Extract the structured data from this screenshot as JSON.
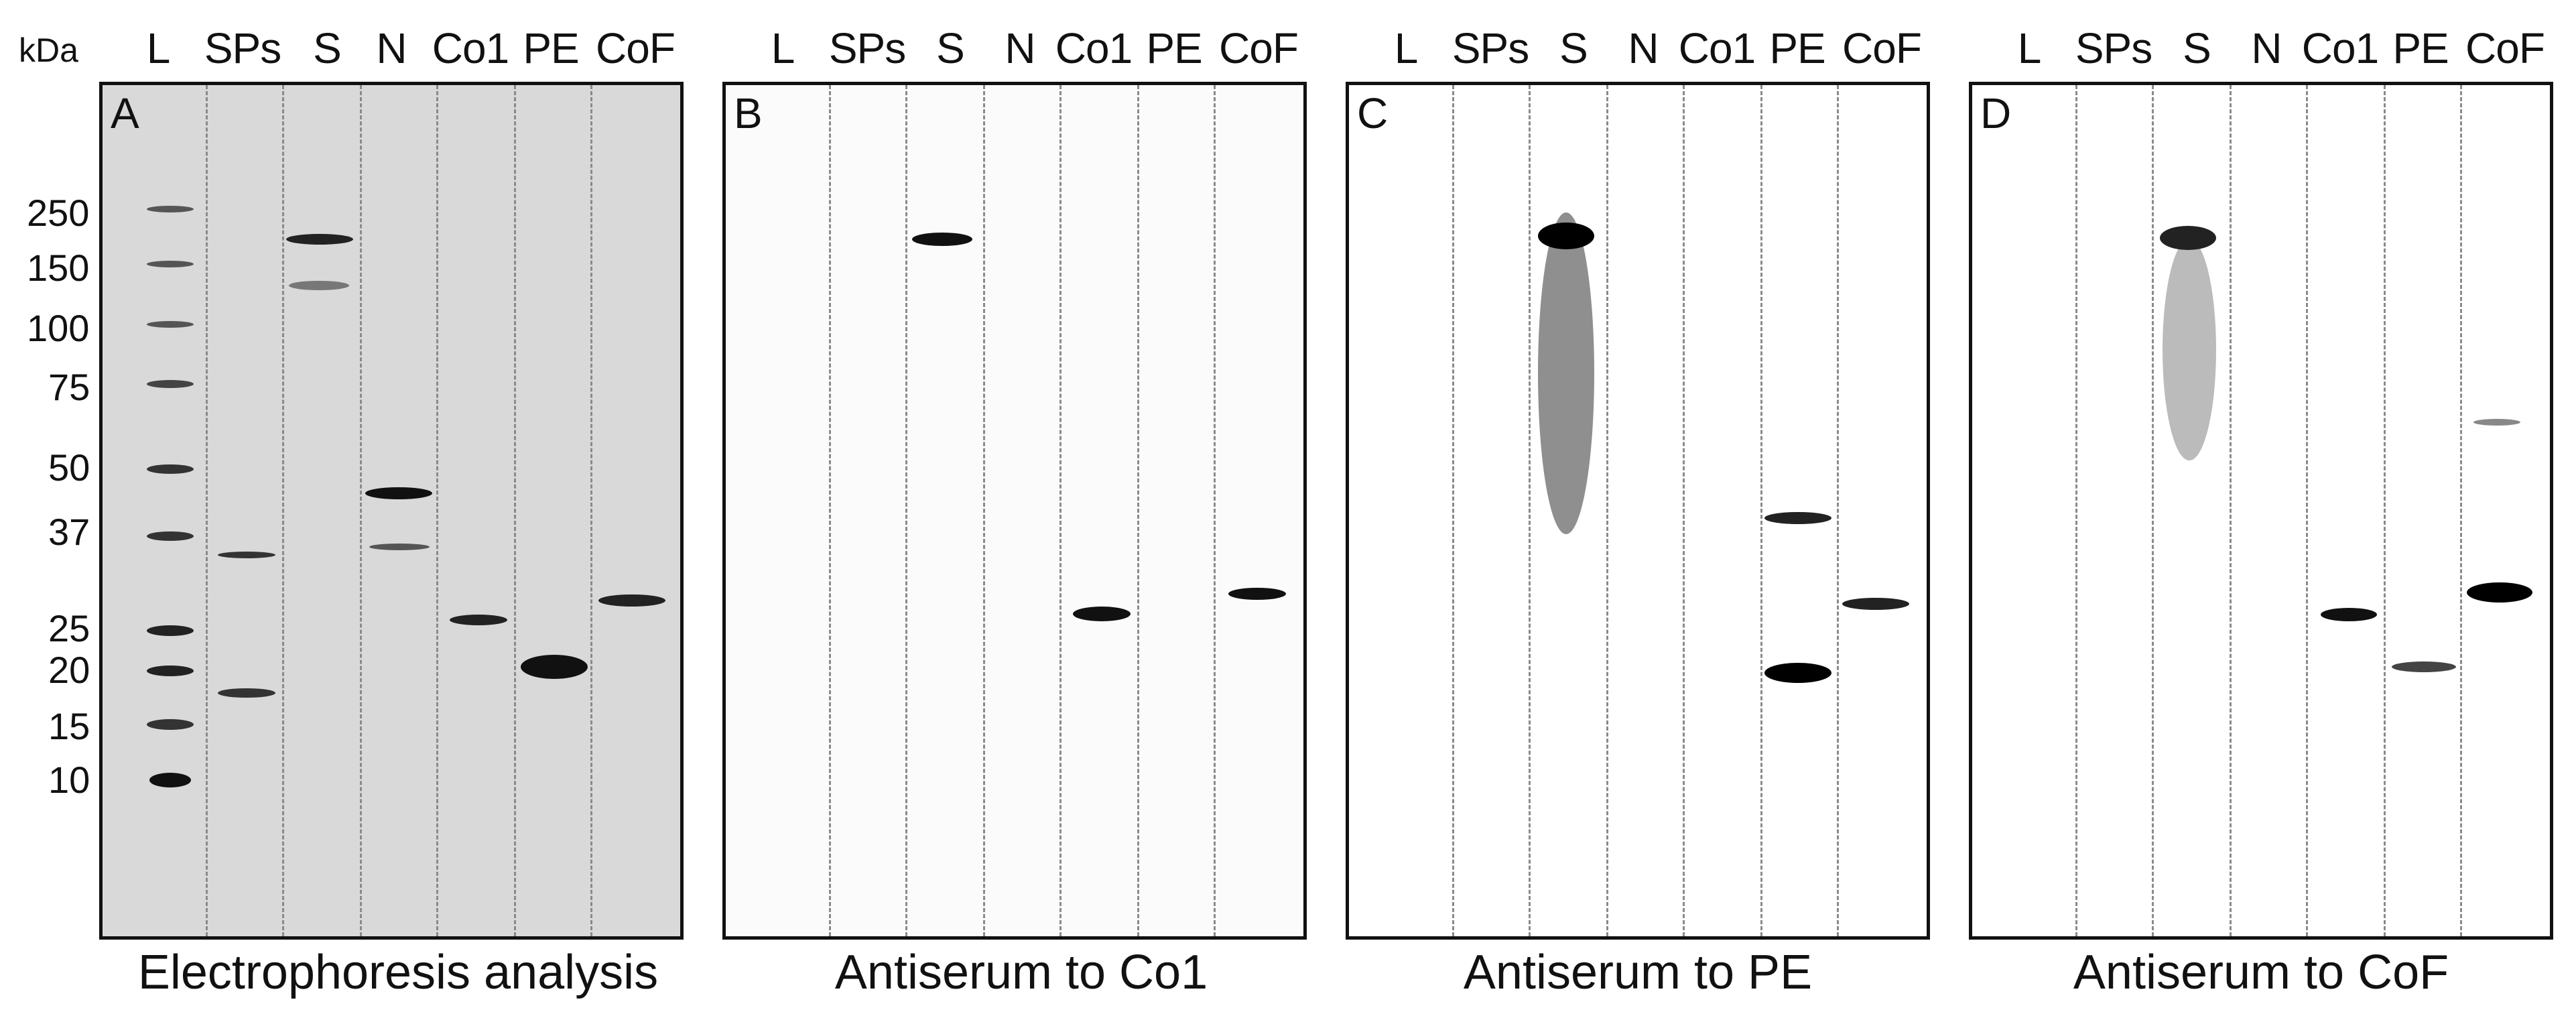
{
  "kda_label": "kDa",
  "lanes": [
    "L",
    "SPs",
    "S",
    "N",
    "Co1",
    "PE",
    "CoF"
  ],
  "markers": [
    "250",
    "150",
    "100",
    "75",
    "50",
    "37",
    "25",
    "20",
    "15",
    "10"
  ],
  "panels": [
    {
      "letter": "A",
      "caption": "Electrophoresis analysis"
    },
    {
      "letter": "B",
      "caption": "Antiserum to Co1"
    },
    {
      "letter": "C",
      "caption": "Antiserum to PE"
    },
    {
      "letter": "D",
      "caption": "Antiserum to CoF"
    }
  ],
  "colors": {
    "panel_a_background": "#d9d9d9",
    "band_dark": "#111111"
  }
}
